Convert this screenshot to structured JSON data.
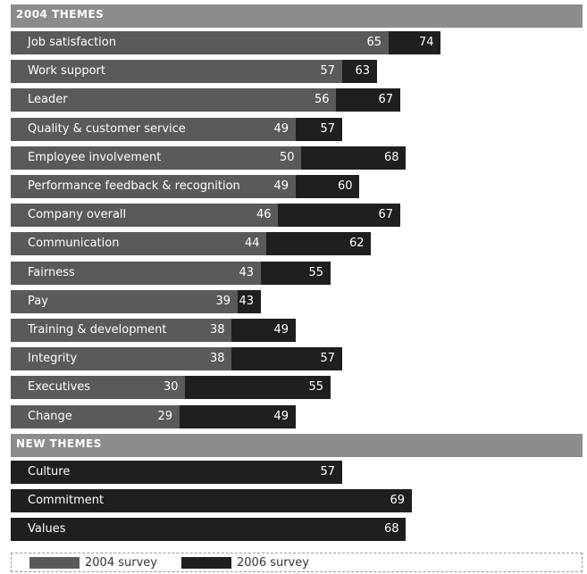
{
  "chart_data": {
    "type": "bar",
    "orientation": "horizontal",
    "series": [
      {
        "name": "2004 survey"
      },
      {
        "name": "2006 survey"
      }
    ],
    "colors": {
      "s2004": "#5a5a5a",
      "s2006": "#1f1f1f",
      "header": "#8c8c8c"
    },
    "groups": [
      {
        "title": "2004 THEMES",
        "items": [
          {
            "label": "Job satisfaction",
            "v2004": 65,
            "v2006": 74
          },
          {
            "label": "Work support",
            "v2004": 57,
            "v2006": 63
          },
          {
            "label": "Leader",
            "v2004": 56,
            "v2006": 67
          },
          {
            "label": "Quality & customer service",
            "v2004": 49,
            "v2006": 57
          },
          {
            "label": "Employee involvement",
            "v2004": 50,
            "v2006": 68
          },
          {
            "label": "Performance feedback & recognition",
            "v2004": 49,
            "v2006": 60
          },
          {
            "label": "Company overall",
            "v2004": 46,
            "v2006": 67
          },
          {
            "label": "Communication",
            "v2004": 44,
            "v2006": 62
          },
          {
            "label": "Fairness",
            "v2004": 43,
            "v2006": 55
          },
          {
            "label": "Pay",
            "v2004": 39,
            "v2006": 43
          },
          {
            "label": "Training & development",
            "v2004": 38,
            "v2006": 49
          },
          {
            "label": "Integrity",
            "v2004": 38,
            "v2006": 57
          },
          {
            "label": "Executives",
            "v2004": 30,
            "v2006": 55
          },
          {
            "label": "Change",
            "v2004": 29,
            "v2006": 49
          }
        ]
      },
      {
        "title": "NEW THEMES",
        "items": [
          {
            "label": "Culture",
            "v2004": null,
            "v2006": 57
          },
          {
            "label": "Commitment",
            "v2004": null,
            "v2006": 69
          },
          {
            "label": "Values",
            "v2004": null,
            "v2006": 68
          }
        ]
      }
    ],
    "legend": {
      "items": [
        "2004 survey",
        "2006 survey"
      ],
      "placement": "bottom-left"
    }
  }
}
